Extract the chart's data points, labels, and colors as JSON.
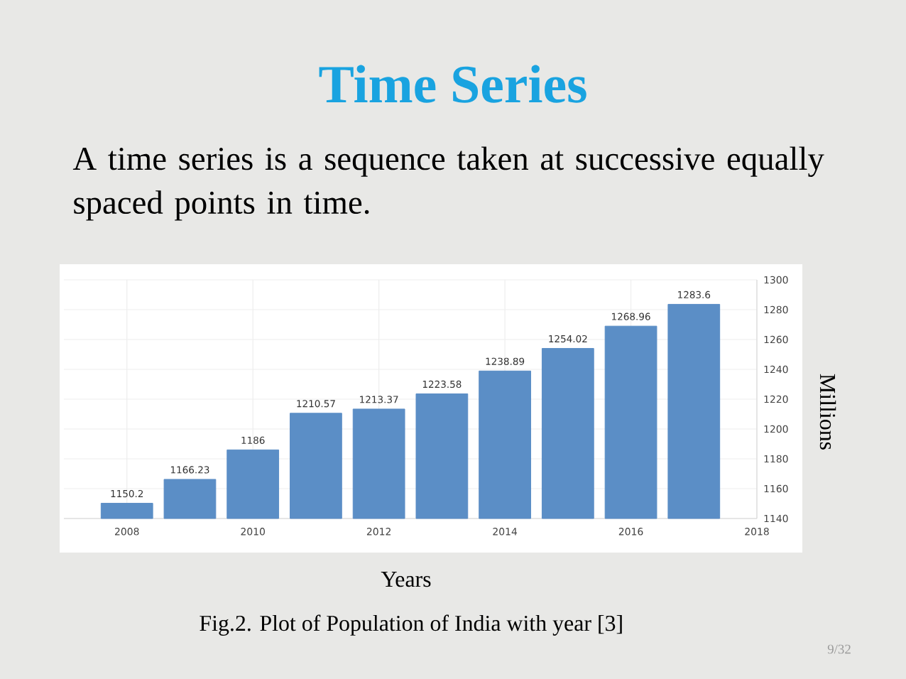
{
  "chart_data": {
    "type": "bar",
    "title": "Time Series",
    "subtitle": "A time series is a sequence taken at successive equally spaced points in time.",
    "xlabel": "Years",
    "ylabel": "Millions",
    "annotations": [
      "Fig.2. Plot of Population of India with year [3]",
      "9/32"
    ],
    "x": [
      2008,
      2009,
      2010,
      2011,
      2012,
      2013,
      2014,
      2015,
      2016,
      2017
    ],
    "values": [
      1150.2,
      1166.23,
      1186,
      1210.57,
      1213.37,
      1223.58,
      1238.89,
      1254.02,
      1268.96,
      1283.6
    ],
    "color": "#5b8ec6",
    "xlim": [
      2007,
      2018
    ],
    "ylim": [
      1140,
      1300
    ],
    "xticks": [
      2008,
      2010,
      2012,
      2014,
      2016,
      2018
    ],
    "yticks": [
      1140,
      1160,
      1180,
      1200,
      1220,
      1240,
      1260,
      1280,
      1300
    ],
    "grid": true,
    "data_labels": true
  }
}
